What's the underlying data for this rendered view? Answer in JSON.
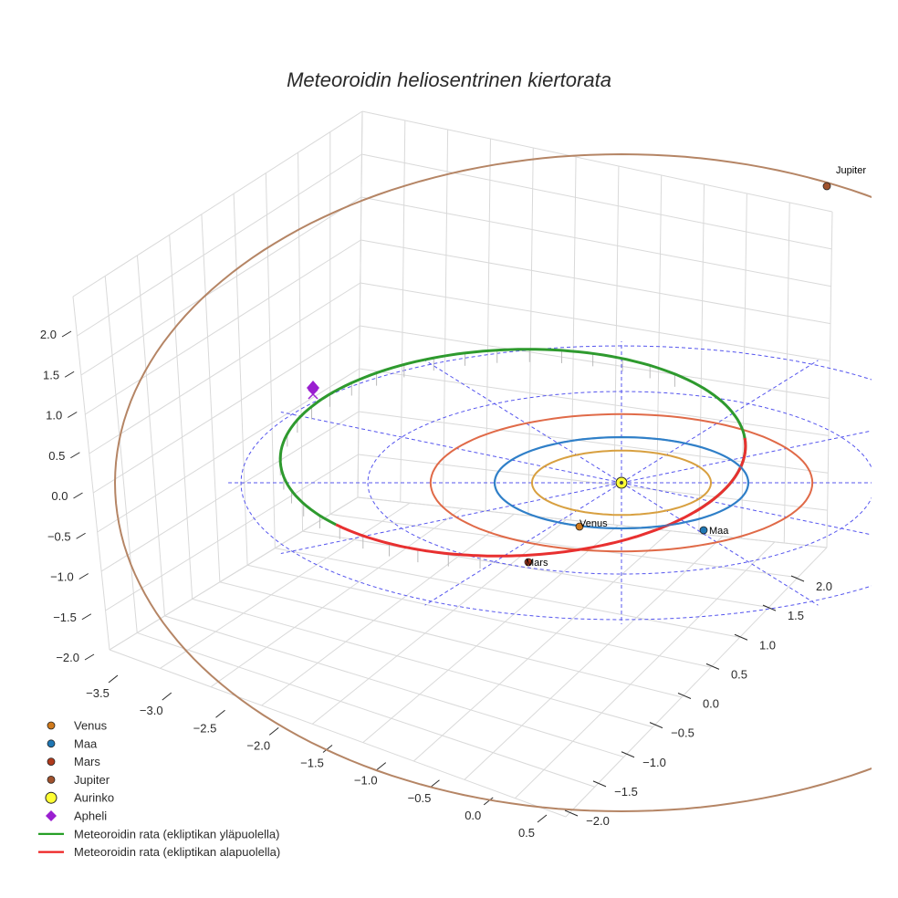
{
  "chart_data": {
    "type": "scatter3d",
    "title": "Meteoroidin heliosentrinen kiertorata",
    "axes": {
      "x": {
        "range": [
          -3.5,
          0.5
        ],
        "ticks": [
          "−3.5",
          "−3.0",
          "−2.5",
          "−2.0",
          "−1.5",
          "−1.0",
          "−0.5",
          "0.0",
          "0.5"
        ]
      },
      "y": {
        "range": [
          -2.0,
          2.0
        ],
        "ticks": [
          "−2.0",
          "−1.5",
          "−1.0",
          "−0.5",
          "0.0",
          "0.5",
          "1.0",
          "1.5",
          "2.0"
        ]
      },
      "z": {
        "range": [
          -2.0,
          2.0
        ],
        "ticks": [
          "−2.0",
          "−1.5",
          "−1.0",
          "−0.5",
          "0.0",
          "0.5",
          "1.0",
          "1.5",
          "2.0"
        ]
      },
      "grid": true
    },
    "ecliptic_grid": {
      "radii_au": [
        1,
        2,
        3
      ],
      "style": "dashed",
      "color": "#5555ee"
    },
    "planet_orbits": [
      {
        "name": "Venus",
        "a_au": 0.72,
        "color": "#d8a040"
      },
      {
        "name": "Maa",
        "a_au": 1.0,
        "color": "#2f7fc8"
      },
      {
        "name": "Mars",
        "a_au": 1.52,
        "color": "#e06a48"
      },
      {
        "name": "Jupiter",
        "a_au": 5.2,
        "color": "#b58565"
      }
    ],
    "meteoroid_orbit": {
      "perihelion_au": 0.98,
      "aphelion_au": 3.2,
      "segments": [
        {
          "name": "Meteoroidin rata (ekliptikan yläpuolella)",
          "color": "#2e9a2e"
        },
        {
          "name": "Meteoroidin rata (ekliptikan alapuolella)",
          "color": "#e83030"
        }
      ]
    },
    "points": [
      {
        "name": "Venus",
        "label": "Venus",
        "color": "#d07a1c"
      },
      {
        "name": "Maa",
        "label": "Maa",
        "color": "#1f77b4"
      },
      {
        "name": "Mars",
        "label": "Mars",
        "color": "#b03a1c"
      },
      {
        "name": "Jupiter",
        "label": "Jupiter",
        "color": "#a0522d"
      },
      {
        "name": "Aurinko",
        "label": "",
        "color": "#ffff33"
      },
      {
        "name": "Apheli",
        "label": "",
        "color": "#9a1fd0"
      }
    ],
    "legend": {
      "position": "bottom-left",
      "entries": [
        {
          "label": "Venus",
          "marker": "circle",
          "color": "#d07a1c"
        },
        {
          "label": "Maa",
          "marker": "circle",
          "color": "#1f77b4"
        },
        {
          "label": "Mars",
          "marker": "circle",
          "color": "#b03a1c"
        },
        {
          "label": "Jupiter",
          "marker": "circle",
          "color": "#a0522d"
        },
        {
          "label": "Aurinko",
          "marker": "big-circle",
          "color": "#ffff33"
        },
        {
          "label": "Apheli",
          "marker": "diamond",
          "color": "#9a1fd0"
        },
        {
          "label": "Meteoroidin rata (ekliptikan yläpuolella)",
          "marker": "line",
          "color": "#1a9a1a"
        },
        {
          "label": "Meteoroidin rata (ekliptikan alapuolella)",
          "marker": "line",
          "color": "#ee2222"
        }
      ]
    }
  }
}
